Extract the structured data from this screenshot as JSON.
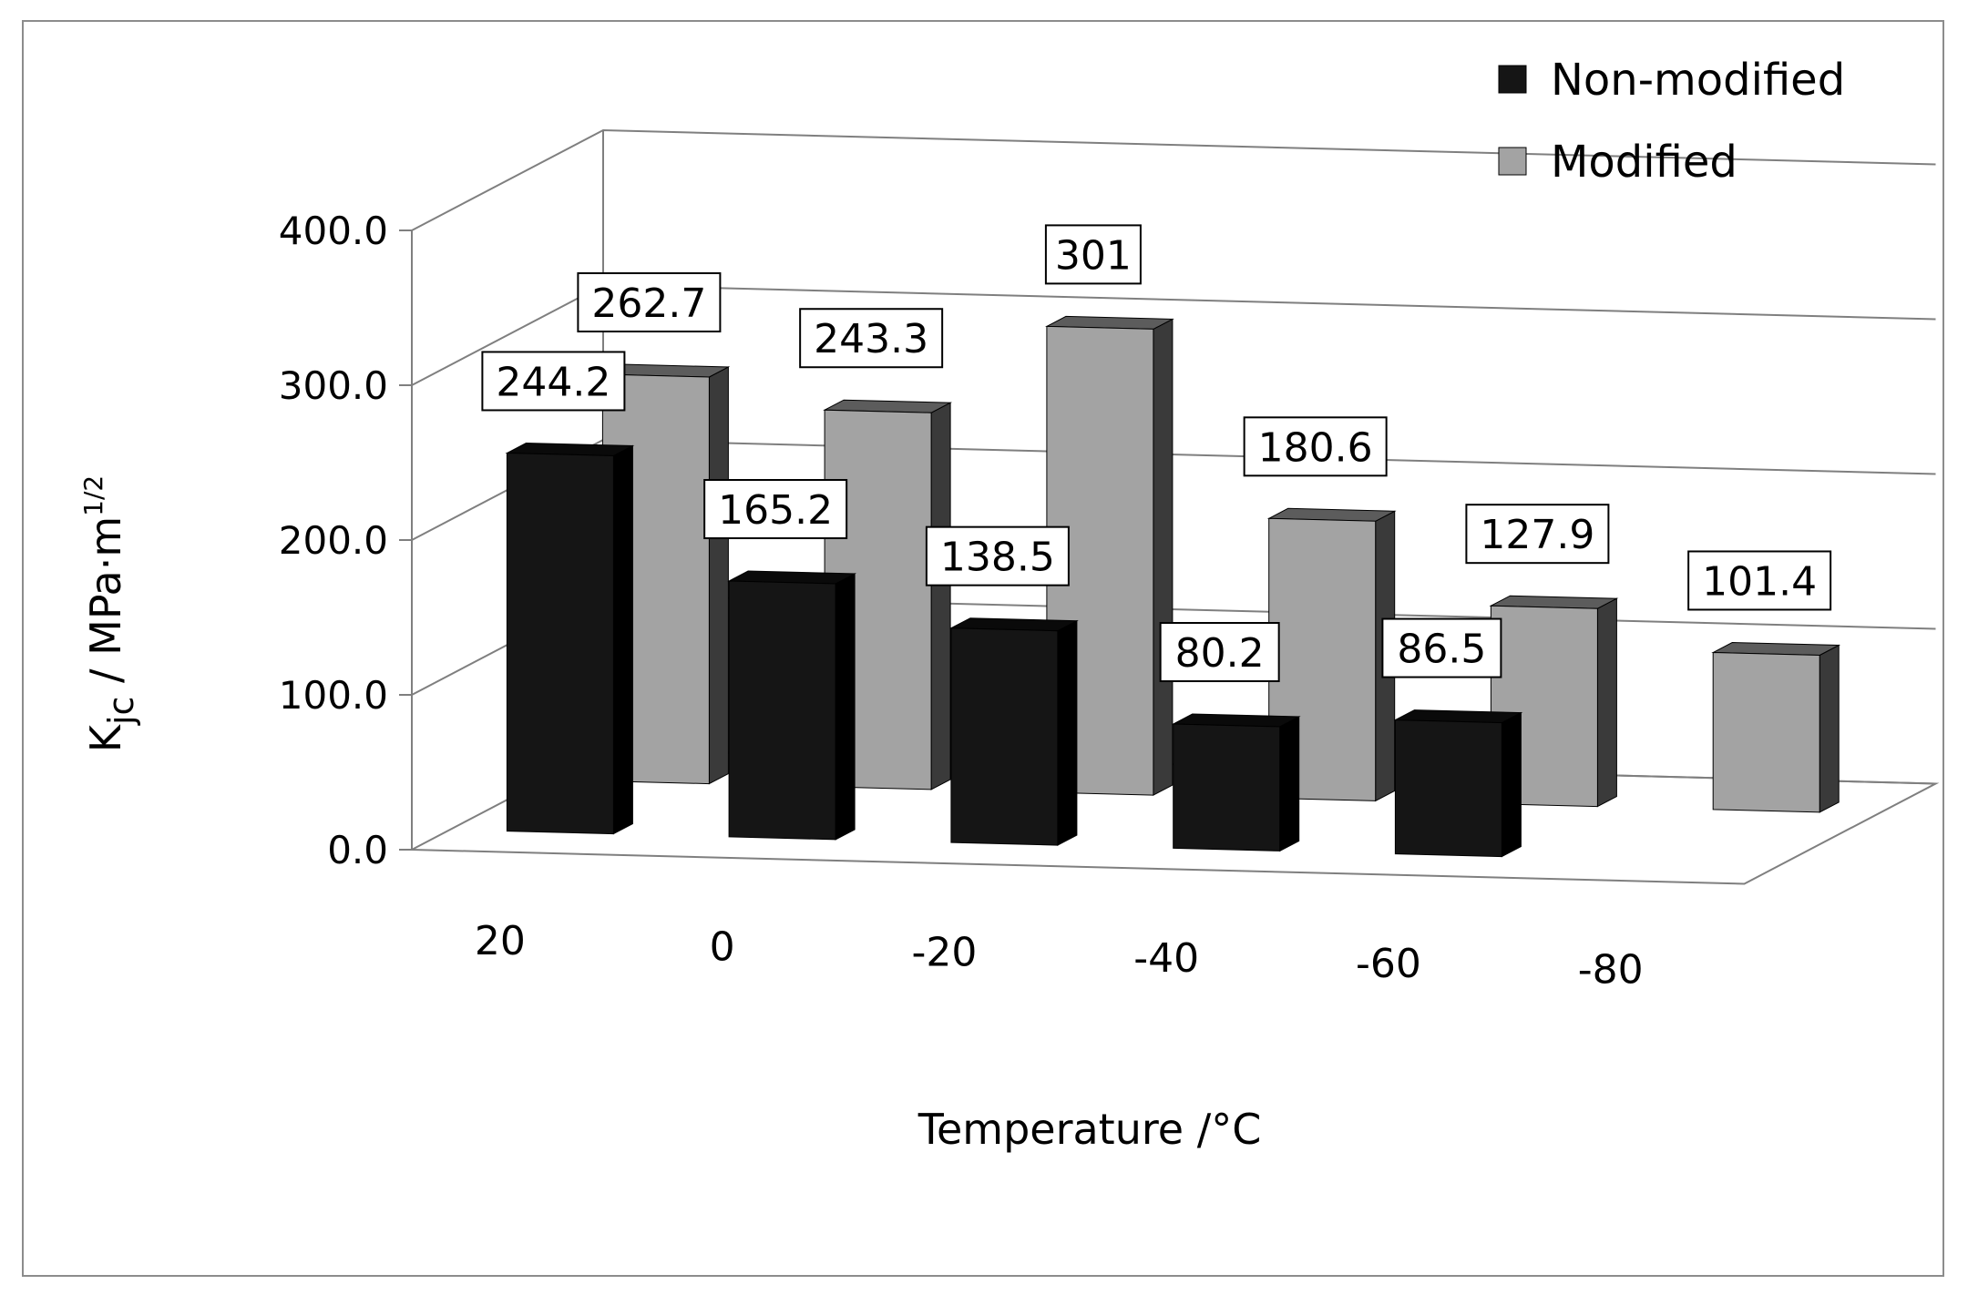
{
  "chart_data": {
    "type": "bar",
    "title": "",
    "xlabel": "Temperature /°C",
    "ylabel": {
      "prefix": "K",
      "subscript": "jc",
      "unit": " / MPa·m",
      "superscript": "1/2"
    },
    "ylim": [
      0,
      400
    ],
    "yticks": [
      0,
      100,
      200,
      300,
      400
    ],
    "ytick_labels": [
      "0.0",
      "100.0",
      "200.0",
      "300.0",
      "400.0"
    ],
    "grid": true,
    "legend_position": "top-right",
    "categories": [
      "20",
      "0",
      "-20",
      "-40",
      "-60",
      "-80"
    ],
    "series": [
      {
        "name": "Non-modified",
        "values": [
          244.2,
          165.2,
          138.5,
          80.2,
          86.5,
          null
        ],
        "labels": [
          "244.2",
          "165.2",
          "138.5",
          "80.2",
          "86.5",
          null
        ],
        "front": "#151515",
        "side": "#000000",
        "top": "#0a0a0a"
      },
      {
        "name": "Modified",
        "values": [
          262.7,
          243.3,
          301,
          180.6,
          127.9,
          101.4
        ],
        "labels": [
          "262.7",
          "243.3",
          "301",
          "180.6",
          "127.9",
          "101.4"
        ],
        "front": "#a3a3a3",
        "side": "#3a3a3a",
        "top": "#5c5c5c"
      }
    ]
  }
}
